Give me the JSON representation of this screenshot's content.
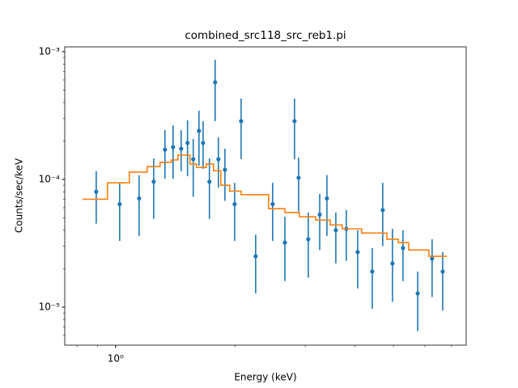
{
  "chart_data": {
    "type": "errorbar-step",
    "title": "combined_src118_src_reb1.pi",
    "xlabel": "Energy (keV)",
    "ylabel": "Counts/sec/keV",
    "xscale": "log",
    "yscale": "log",
    "xlim": [
      0.745,
      7.62
    ],
    "ylim": [
      5.04e-06,
      0.00109
    ],
    "xticks": [
      {
        "value": 1,
        "label": "10⁰"
      }
    ],
    "xminor": [
      0.8,
      0.9,
      2,
      3,
      4,
      5,
      6,
      7
    ],
    "yticks": [
      {
        "value": 1e-05,
        "label": "10⁻⁵"
      },
      {
        "value": 0.0001,
        "label": "10⁻⁴"
      },
      {
        "value": 0.001,
        "label": "10⁻³"
      }
    ],
    "yminor": [
      6e-06,
      7e-06,
      8e-06,
      9e-06,
      2e-05,
      3e-05,
      4e-05,
      5e-05,
      6e-05,
      7e-05,
      8e-05,
      9e-05,
      0.0002,
      0.0003,
      0.0004,
      0.0005,
      0.0006,
      0.0007,
      0.0008,
      0.0009
    ],
    "series": [
      {
        "kind": "data",
        "color": "#1f77b4",
        "x": [
          0.894,
          1.024,
          1.146,
          1.247,
          1.331,
          1.395,
          1.462,
          1.517,
          1.568,
          1.621,
          1.66,
          1.722,
          1.78,
          1.814,
          1.884,
          1.993,
          2.069,
          2.251,
          2.484,
          2.666,
          2.819,
          2.886,
          3.053,
          3.262,
          3.401,
          3.581,
          3.805,
          4.064,
          4.422,
          4.699,
          4.972,
          5.284,
          5.754,
          6.255,
          6.65
        ],
        "values": [
          8e-05,
          6.4e-05,
          7.1e-05,
          9.6e-05,
          0.000171,
          0.000179,
          0.000174,
          0.000193,
          0.000144,
          0.00024,
          0.000193,
          9.6e-05,
          0.000575,
          0.000144,
          0.000119,
          6.4e-05,
          0.000286,
          2.5e-05,
          6.4e-05,
          3.2e-05,
          0.000286,
          0.000103,
          3.4e-05,
          5.3e-05,
          7.1e-05,
          4e-05,
          4.1e-05,
          2.7e-05,
          1.9e-05,
          5.75e-05,
          2.2e-05,
          2.9e-05,
          1.28e-05,
          2.4e-05,
          1.9e-05
        ],
        "lower": [
          4.5e-05,
          3.3e-05,
          3.6e-05,
          4.9e-05,
          0.000101,
          0.000101,
          0.000116,
          0.000106,
          7.3e-05,
          0.000128,
          0.000121,
          4.9e-05,
          0.000286,
          8.6e-05,
          6.8e-05,
          3.3e-05,
          0.000144,
          1.28e-05,
          3.3e-05,
          1.6e-05,
          0.000144,
          5.6e-05,
          1.7e-05,
          2.8e-05,
          3.6e-05,
          2.2e-05,
          2.3e-05,
          1.4e-05,
          9.7e-06,
          3e-05,
          1.1e-05,
          1.6e-05,
          6.5e-06,
          1.2e-05,
          9.4e-06
        ],
        "upper": [
          0.000116,
          9.3e-05,
          0.000108,
          0.000146,
          0.000243,
          0.000265,
          0.000243,
          0.00029,
          0.000207,
          0.000345,
          0.000286,
          0.000146,
          0.000865,
          0.000213,
          0.000174,
          9.4e-05,
          0.00043,
          3.7e-05,
          9.4e-05,
          5.1e-05,
          0.00043,
          0.000148,
          5.5e-05,
          7.7e-05,
          0.000108,
          5.5e-05,
          5.75e-05,
          4e-05,
          2.9e-05,
          9.4e-05,
          4.1e-05,
          4e-05,
          1.9e-05,
          3.4e-05,
          2.7e-05
        ]
      },
      {
        "kind": "model",
        "color": "#ff7f0e",
        "edges": [
          0.825,
          0.954,
          1.083,
          1.201,
          1.294,
          1.382,
          1.435,
          1.539,
          1.599,
          1.691,
          1.764,
          1.84,
          1.937,
          2.069,
          2.426,
          2.666,
          2.899,
          3.187,
          3.467,
          3.717,
          4.159,
          4.813,
          5.14,
          5.461,
          6.14,
          6.807
        ],
        "values": [
          7e-05,
          9.4e-05,
          0.000114,
          0.000126,
          0.000136,
          0.000142,
          0.000155,
          0.000132,
          0.000124,
          0.000132,
          0.000117,
          9e-05,
          8.1e-05,
          7.6e-05,
          5.9e-05,
          5.5e-05,
          5.1e-05,
          4.8e-05,
          4.4e-05,
          4.1e-05,
          3.8e-05,
          3.4e-05,
          3.2e-05,
          2.8e-05,
          2.5e-05
        ]
      }
    ]
  }
}
